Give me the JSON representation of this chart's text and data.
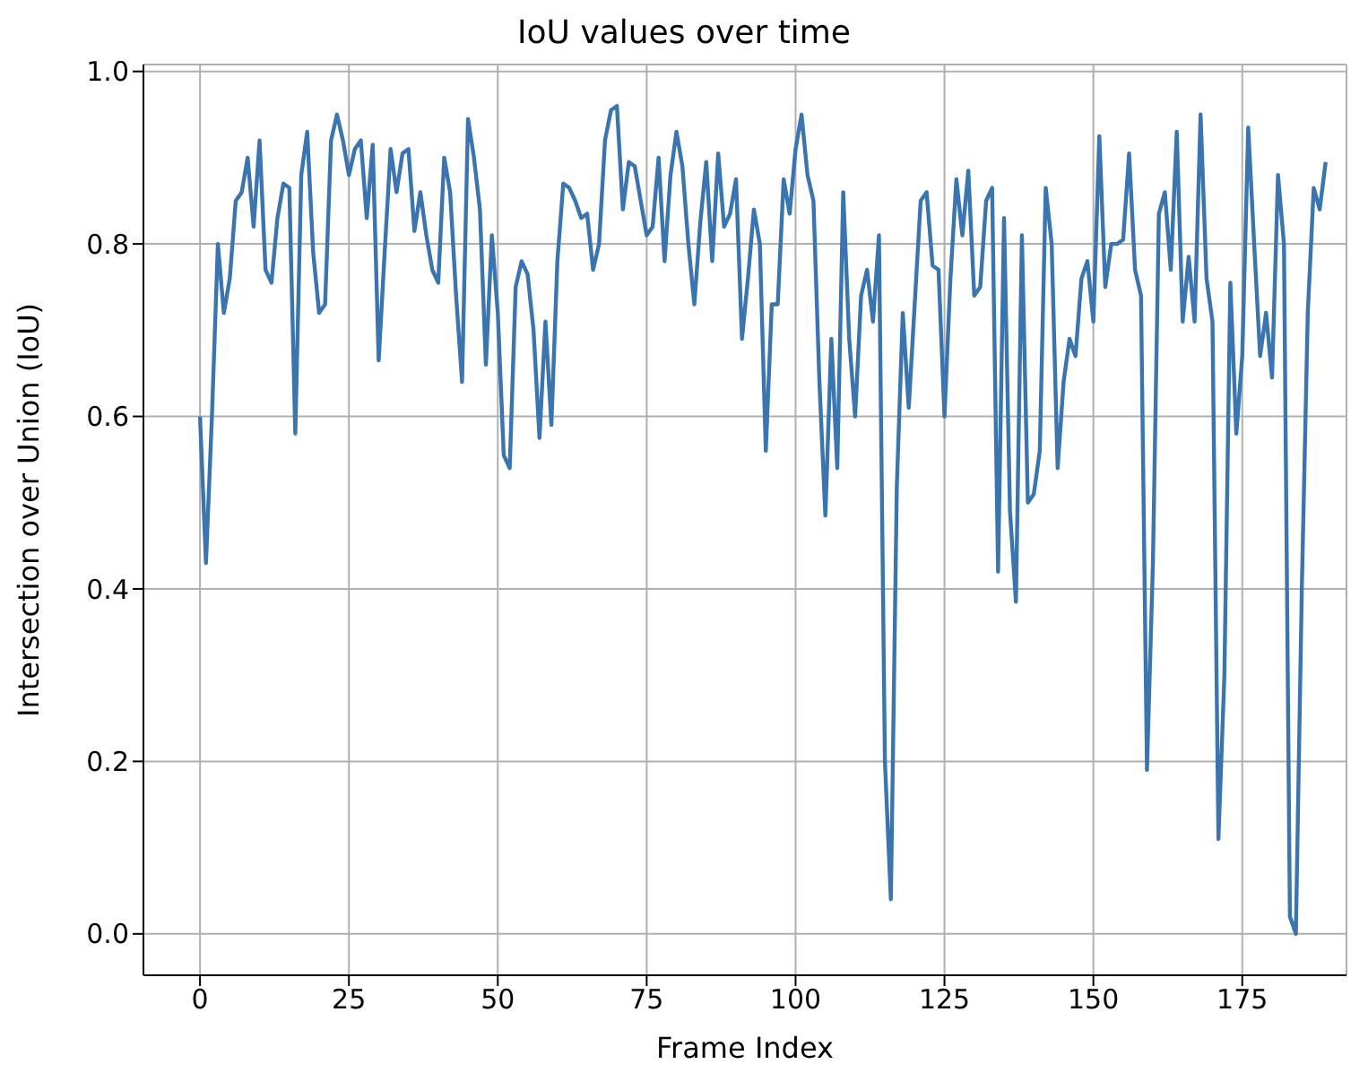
{
  "chart_data": {
    "type": "line",
    "title": "IoU values over time",
    "xlabel": "Frame Index",
    "ylabel": "Intersection over Union (IoU)",
    "x": [
      0,
      1,
      2,
      3,
      4,
      5,
      6,
      7,
      8,
      9,
      10,
      11,
      12,
      13,
      14,
      15,
      16,
      17,
      18,
      19,
      20,
      21,
      22,
      23,
      24,
      25,
      26,
      27,
      28,
      29,
      30,
      31,
      32,
      33,
      34,
      35,
      36,
      37,
      38,
      39,
      40,
      41,
      42,
      43,
      44,
      45,
      46,
      47,
      48,
      49,
      50,
      51,
      52,
      53,
      54,
      55,
      56,
      57,
      58,
      59,
      60,
      61,
      62,
      63,
      64,
      65,
      66,
      67,
      68,
      69,
      70,
      71,
      72,
      73,
      74,
      75,
      76,
      77,
      78,
      79,
      80,
      81,
      82,
      83,
      84,
      85,
      86,
      87,
      88,
      89,
      90,
      91,
      92,
      93,
      94,
      95,
      96,
      97,
      98,
      99,
      100,
      101,
      102,
      103,
      104,
      105,
      106,
      107,
      108,
      109,
      110,
      111,
      112,
      113,
      114,
      115,
      116,
      117,
      118,
      119,
      120,
      121,
      122,
      123,
      124,
      125,
      126,
      127,
      128,
      129,
      130,
      131,
      132,
      133,
      134,
      135,
      136,
      137,
      138,
      139,
      140,
      141,
      142,
      143,
      144,
      145,
      146,
      147,
      148,
      149,
      150,
      151,
      152,
      153,
      154,
      155,
      156,
      157,
      158,
      159,
      160,
      161,
      162,
      163,
      164,
      165,
      166,
      167,
      168,
      169,
      170,
      171,
      172,
      173,
      174,
      175,
      176,
      177,
      178,
      179,
      180,
      181,
      182,
      183,
      184,
      185,
      186,
      187,
      188,
      189
    ],
    "series": [
      {
        "color": "#3a75af",
        "values": [
          0.6,
          0.43,
          0.6,
          0.8,
          0.72,
          0.76,
          0.85,
          0.86,
          0.9,
          0.82,
          0.92,
          0.77,
          0.755,
          0.83,
          0.87,
          0.865,
          0.58,
          0.88,
          0.93,
          0.79,
          0.72,
          0.73,
          0.92,
          0.95,
          0.92,
          0.88,
          0.91,
          0.92,
          0.83,
          0.915,
          0.665,
          0.79,
          0.91,
          0.86,
          0.905,
          0.91,
          0.815,
          0.86,
          0.81,
          0.77,
          0.755,
          0.9,
          0.86,
          0.74,
          0.64,
          0.945,
          0.9,
          0.84,
          0.66,
          0.81,
          0.72,
          0.555,
          0.54,
          0.75,
          0.78,
          0.765,
          0.7,
          0.575,
          0.71,
          0.59,
          0.78,
          0.87,
          0.865,
          0.85,
          0.83,
          0.835,
          0.77,
          0.8,
          0.92,
          0.955,
          0.96,
          0.84,
          0.895,
          0.89,
          0.85,
          0.81,
          0.82,
          0.9,
          0.78,
          0.88,
          0.93,
          0.89,
          0.8,
          0.73,
          0.825,
          0.895,
          0.78,
          0.905,
          0.82,
          0.835,
          0.875,
          0.69,
          0.76,
          0.84,
          0.8,
          0.56,
          0.73,
          0.73,
          0.875,
          0.835,
          0.91,
          0.95,
          0.88,
          0.85,
          0.64,
          0.485,
          0.69,
          0.54,
          0.86,
          0.69,
          0.6,
          0.74,
          0.77,
          0.71,
          0.81,
          0.2,
          0.04,
          0.52,
          0.72,
          0.61,
          0.73,
          0.85,
          0.86,
          0.775,
          0.77,
          0.6,
          0.76,
          0.875,
          0.81,
          0.885,
          0.74,
          0.75,
          0.85,
          0.865,
          0.42,
          0.83,
          0.49,
          0.385,
          0.81,
          0.5,
          0.51,
          0.56,
          0.865,
          0.8,
          0.54,
          0.64,
          0.69,
          0.67,
          0.76,
          0.78,
          0.71,
          0.925,
          0.75,
          0.8,
          0.8,
          0.805,
          0.905,
          0.77,
          0.74,
          0.19,
          0.43,
          0.835,
          0.86,
          0.77,
          0.93,
          0.71,
          0.785,
          0.71,
          0.95,
          0.76,
          0.71,
          0.11,
          0.3,
          0.755,
          0.58,
          0.67,
          0.935,
          0.8,
          0.67,
          0.72,
          0.645,
          0.88,
          0.8,
          0.02,
          0.0,
          0.4,
          0.72,
          0.865,
          0.84,
          0.895
        ]
      }
    ],
    "xlim": [
      -9.5,
      192.5
    ],
    "xticks": [
      0,
      25,
      50,
      75,
      100,
      125,
      150,
      175
    ],
    "ylim": [
      -0.048,
      1.008
    ],
    "yticks": [
      {
        "value": 0,
        "label": "0.0"
      },
      0.2,
      0.4,
      0.6,
      0.8,
      {
        "value": 1,
        "label": "1.0"
      }
    ],
    "grid": true,
    "legend": false,
    "marker": "none",
    "line_style": "solid"
  }
}
